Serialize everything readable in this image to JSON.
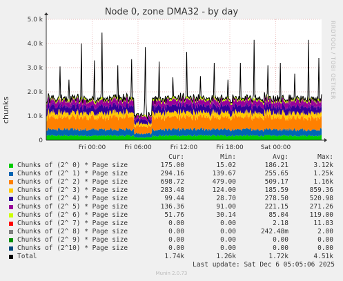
{
  "chart_data": {
    "type": "area",
    "title": "Node 0, zone DMA32 - by day",
    "ylabel": "chunks",
    "ylim": [
      0,
      5000
    ],
    "y_ticks": [
      "0",
      "1.0 k",
      "2.0 k",
      "3.0 k",
      "4.0 k",
      "5.0 k"
    ],
    "y_tick_values": [
      0,
      1000,
      2000,
      3000,
      4000,
      5000
    ],
    "x_ticks": [
      "Fri 00:00",
      "Fri 06:00",
      "Fri 12:00",
      "Fri 18:00",
      "Sat 00:00"
    ],
    "x_tick_hours": [
      6,
      12,
      18,
      24,
      30
    ],
    "x_range_hours": [
      0,
      36
    ],
    "grid": true,
    "side_label": "RRDTOOL / TOBI OETIKER",
    "columns": [
      "Cur:",
      "Min:",
      "Avg:",
      "Max:"
    ],
    "series": [
      {
        "name": "Chunks of (2^ 0) * Page size",
        "color": "#00cc00",
        "cur": "175.00",
        "min": "15.02",
        "avg": "186.21",
        "max": "3.12k",
        "level": 186
      },
      {
        "name": "Chunks of (2^ 1) * Page size",
        "color": "#0066b3",
        "cur": "294.16",
        "min": "139.67",
        "avg": "255.65",
        "max": "1.25k",
        "level": 256
      },
      {
        "name": "Chunks of (2^ 2) * Page size",
        "color": "#ff8000",
        "cur": "698.72",
        "min": "479.00",
        "avg": "509.17",
        "max": "1.16k",
        "level": 509
      },
      {
        "name": "Chunks of (2^ 3) * Page size",
        "color": "#ffcc00",
        "cur": "283.48",
        "min": "124.00",
        "avg": "185.59",
        "max": "859.36",
        "level": 186
      },
      {
        "name": "Chunks of (2^ 4) * Page size",
        "color": "#330099",
        "cur": "99.44",
        "min": "28.70",
        "avg": "278.50",
        "max": "520.98",
        "level": 278
      },
      {
        "name": "Chunks of (2^ 5) * Page size",
        "color": "#990099",
        "cur": "136.36",
        "min": "91.00",
        "avg": "221.15",
        "max": "271.26",
        "level": 221
      },
      {
        "name": "Chunks of (2^ 6) * Page size",
        "color": "#ccff00",
        "cur": "51.76",
        "min": "30.14",
        "avg": "85.04",
        "max": "119.00",
        "level": 85
      },
      {
        "name": "Chunks of (2^ 7) * Page size",
        "color": "#ff0000",
        "cur": "0.00",
        "min": "0.00",
        "avg": "2.18",
        "max": "11.83",
        "level": 2
      },
      {
        "name": "Chunks of (2^ 8) * Page size",
        "color": "#808080",
        "cur": "0.00",
        "min": "0.00",
        "avg": "242.48m",
        "max": "2.00",
        "level": 0
      },
      {
        "name": "Chunks of (2^ 9) * Page size",
        "color": "#008f00",
        "cur": "0.00",
        "min": "0.00",
        "avg": "0.00",
        "max": "0.00",
        "level": 0
      },
      {
        "name": "Chunks of (2^10) * Page size",
        "color": "#00487d",
        "cur": "0.00",
        "min": "0.00",
        "avg": "0.00",
        "max": "0.00",
        "level": 0
      },
      {
        "name": "Total",
        "color": "#000000",
        "cur": "1.74k",
        "min": "1.26k",
        "avg": "1.72k",
        "max": "4.51k",
        "level": 0
      }
    ],
    "total_spikes": [
      {
        "hour": 1.8,
        "value": 3050
      },
      {
        "hour": 3.0,
        "value": 2500
      },
      {
        "hour": 4.6,
        "value": 4000
      },
      {
        "hour": 6.3,
        "value": 3300
      },
      {
        "hour": 7.3,
        "value": 4450
      },
      {
        "hour": 9.4,
        "value": 3100
      },
      {
        "hour": 11.2,
        "value": 3350
      },
      {
        "hour": 13.0,
        "value": 3850
      },
      {
        "hour": 14.8,
        "value": 3250
      },
      {
        "hour": 16.6,
        "value": 2600
      },
      {
        "hour": 18.4,
        "value": 3650
      },
      {
        "hour": 20.2,
        "value": 2650
      },
      {
        "hour": 22.0,
        "value": 3200
      },
      {
        "hour": 23.8,
        "value": 2500
      },
      {
        "hour": 25.4,
        "value": 3200
      },
      {
        "hour": 27.2,
        "value": 4150
      },
      {
        "hour": 29.0,
        "value": 3100
      },
      {
        "hour": 30.6,
        "value": 3200
      },
      {
        "hour": 32.5,
        "value": 2750
      },
      {
        "hour": 34.3,
        "value": 4150
      },
      {
        "hour": 35.6,
        "value": 3400
      }
    ]
  },
  "footer": {
    "last_update": "Last update: Sat Dec  6 05:05:06 2025",
    "version": "Munin 2.0.73"
  }
}
